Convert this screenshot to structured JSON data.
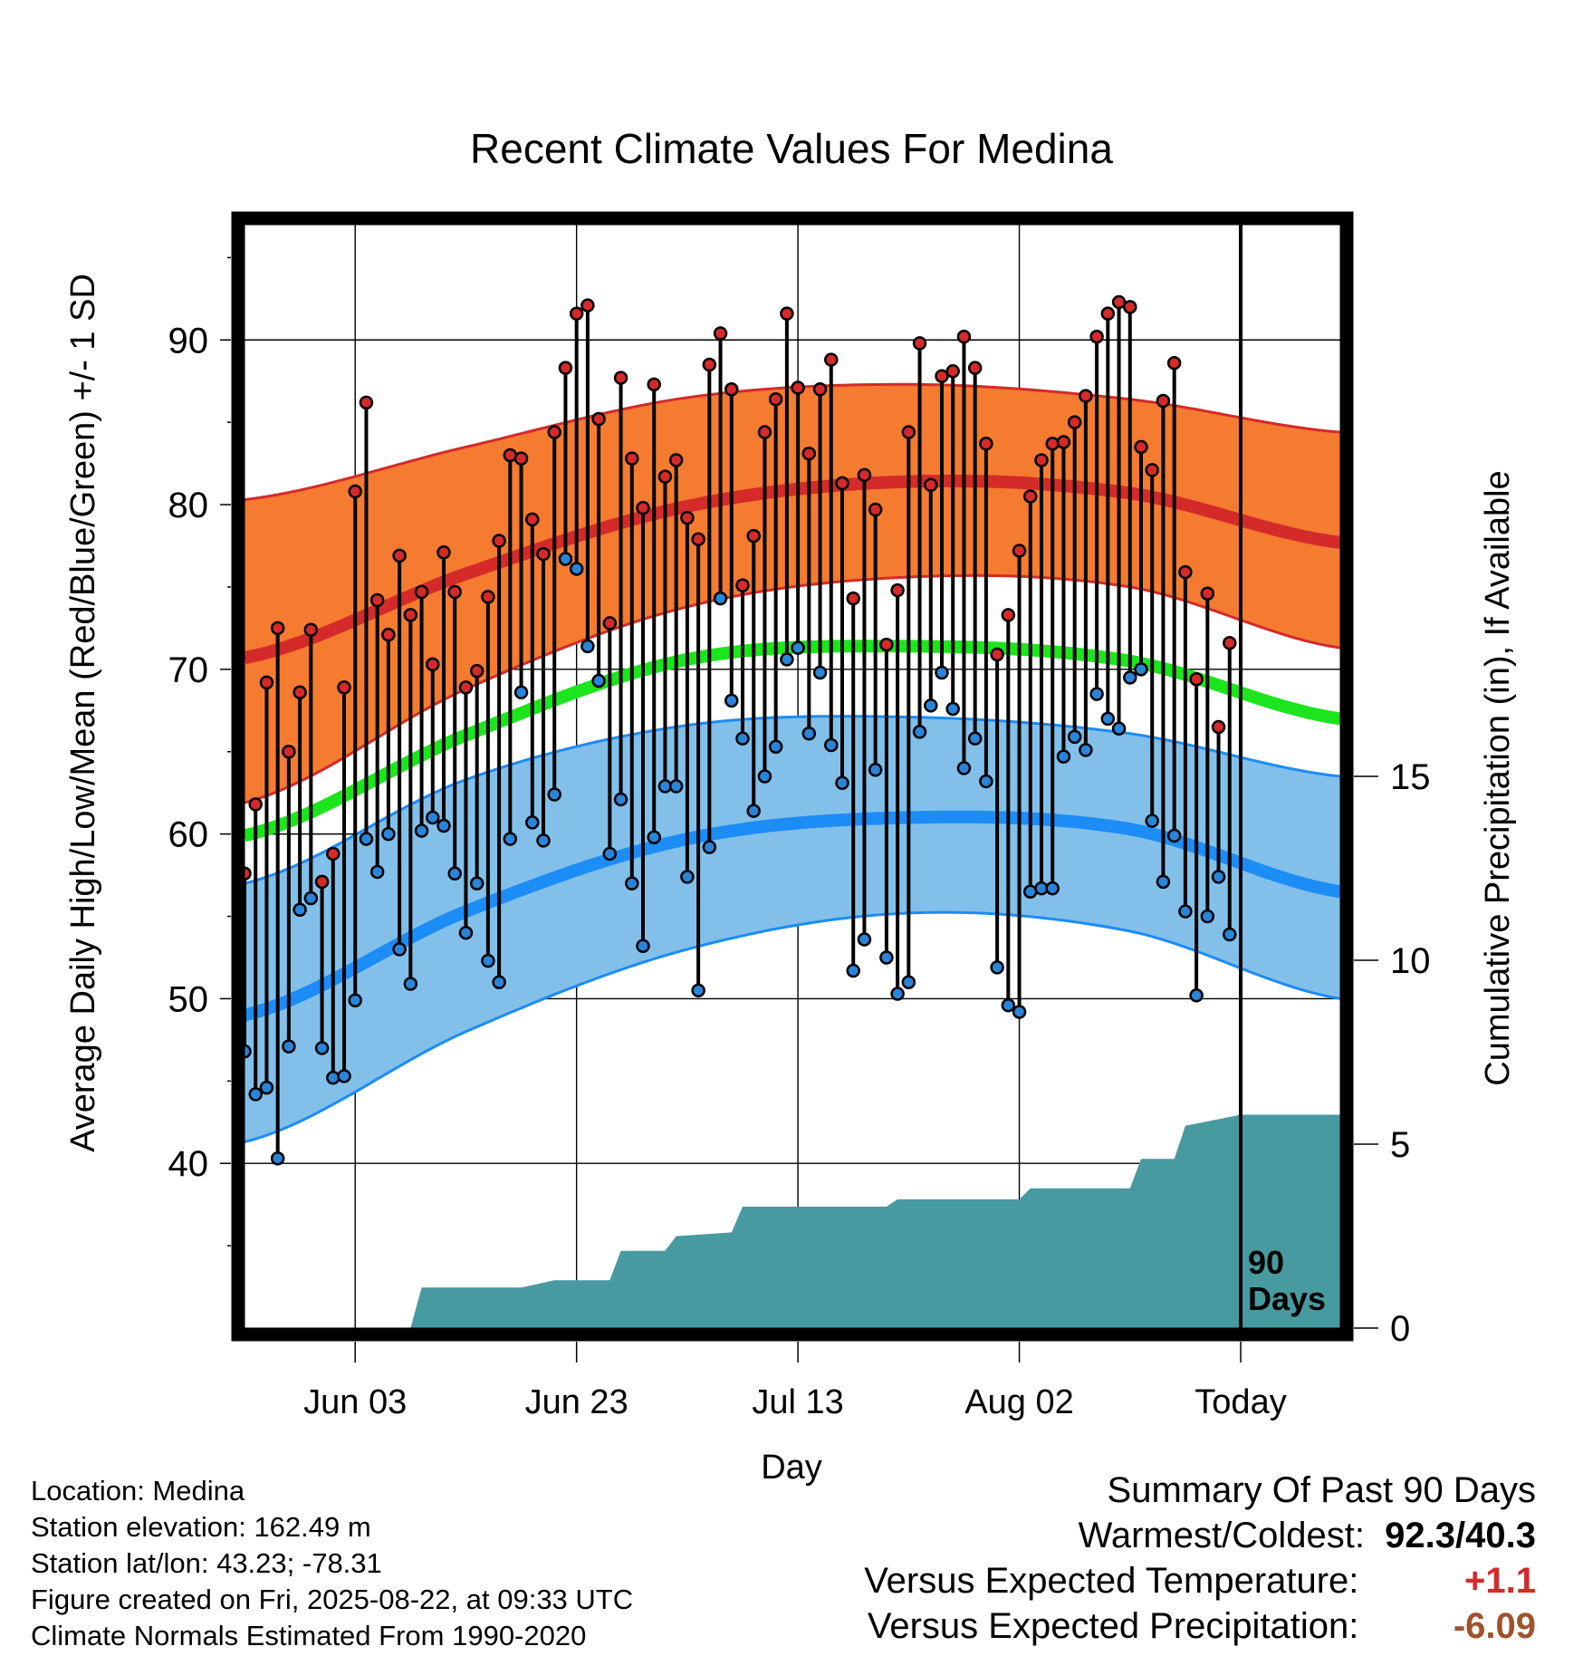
{
  "chart_data": {
    "type": "line",
    "title": "Recent Climate Values For Medina",
    "xlabel": "Day",
    "ylabel": "Average Daily High/Low/Mean (Red/Blue/Green) +/- 1 SD",
    "ylabel_right": "Cumulative Precipitation (in), If Available",
    "ylim": [
      30,
      97
    ],
    "ylim_right": [
      0,
      30
    ],
    "x_range_days_before_today": [
      -90,
      9
    ],
    "x_ticks": [
      {
        "day": -80,
        "label": "Jun 03"
      },
      {
        "day": -60,
        "label": "Jun 23"
      },
      {
        "day": -40,
        "label": "Jul 13"
      },
      {
        "day": -20,
        "label": "Aug 02"
      },
      {
        "day": 0,
        "label": "Today"
      }
    ],
    "y_ticks": [
      40,
      50,
      60,
      70,
      80,
      90
    ],
    "y_ticks_right": [
      0,
      5,
      10,
      15
    ],
    "period_label": "90 Days",
    "colors": {
      "high_band": "#f47b30",
      "high_line": "#d42a2a",
      "low_band": "#82c0ea",
      "low_line": "#1c8cf6",
      "mean_line": "#1de51d",
      "precip": "#479aa0",
      "high_dot": "#d42a2a",
      "low_dot": "#2a84d8",
      "frame": "#000000"
    },
    "normals": {
      "days": [
        -90,
        -70,
        -50,
        -30,
        -10,
        9
      ],
      "high_mean": [
        70.7,
        75.8,
        79.9,
        81.4,
        80.7,
        77.7
      ],
      "high_upper": [
        80.3,
        83.5,
        86.5,
        87.3,
        86.4,
        84.4
      ],
      "high_lower": [
        61.9,
        68.8,
        73.8,
        75.6,
        75.0,
        71.3
      ],
      "mean": [
        59.9,
        66.0,
        70.6,
        71.4,
        70.5,
        67.0
      ],
      "low_mean": [
        49.0,
        55.3,
        59.7,
        61.0,
        60.3,
        56.5
      ],
      "low_upper": [
        57.0,
        63.3,
        66.6,
        67.1,
        66.1,
        63.5
      ],
      "low_lower": [
        41.3,
        48.0,
        53.0,
        55.2,
        54.1,
        50.0
      ]
    },
    "daily_high": [
      57.6,
      61.8,
      69.2,
      72.5,
      65.0,
      68.6,
      72.4,
      57.1,
      58.8,
      68.9,
      80.8,
      86.2,
      74.2,
      72.1,
      76.9,
      73.3,
      74.7,
      70.3,
      77.1,
      74.7,
      68.9,
      69.9,
      74.4,
      77.8,
      83.0,
      82.8,
      79.1,
      77.0,
      84.4,
      88.3,
      91.6,
      92.1,
      85.2,
      72.8,
      87.7,
      82.8,
      79.8,
      87.3,
      81.7,
      82.7,
      79.2,
      77.9,
      88.5,
      90.4,
      87.0,
      75.1,
      78.1,
      84.4,
      86.4,
      91.6,
      87.1,
      83.1,
      87.0,
      88.8,
      81.3,
      74.3,
      81.8,
      79.7,
      71.5,
      74.8,
      84.4,
      89.8,
      81.2,
      87.8,
      88.1,
      90.2,
      88.3,
      83.7,
      70.9,
      73.3,
      77.2,
      80.5,
      82.7,
      83.7,
      83.8,
      85.0,
      86.6,
      90.2,
      91.6,
      92.3,
      92.0,
      83.5,
      82.1,
      86.3,
      88.6,
      75.9,
      69.4,
      74.6,
      66.5,
      71.6
    ],
    "daily_low": [
      46.8,
      44.2,
      44.6,
      40.3,
      47.1,
      55.4,
      56.1,
      47.0,
      45.2,
      45.3,
      49.9,
      59.7,
      57.7,
      60.0,
      53.0,
      50.9,
      60.2,
      61.0,
      60.5,
      57.6,
      54.0,
      57.0,
      52.3,
      51.0,
      59.7,
      68.6,
      60.7,
      59.6,
      62.4,
      76.7,
      76.1,
      71.4,
      69.3,
      58.8,
      62.1,
      57.0,
      53.2,
      59.8,
      62.9,
      62.9,
      57.4,
      50.5,
      59.2,
      74.3,
      68.1,
      65.8,
      61.4,
      63.5,
      65.3,
      70.6,
      71.3,
      66.1,
      69.8,
      65.4,
      63.1,
      51.7,
      53.6,
      63.9,
      52.5,
      50.3,
      51.0,
      66.2,
      67.8,
      69.8,
      67.6,
      64.0,
      65.8,
      63.2,
      51.9,
      49.6,
      49.2,
      56.5,
      56.7,
      56.7,
      64.7,
      65.9,
      65.1,
      68.5,
      67.0,
      66.4,
      69.5,
      70.0,
      60.8,
      57.1,
      59.9,
      55.3,
      50.2,
      55.0,
      57.4,
      53.9
    ],
    "cumulative_precip": {
      "days": [
        -90,
        -75,
        -74,
        -65,
        -62,
        -57,
        -56,
        -52,
        -51,
        -46,
        -45,
        -32,
        -31,
        -20,
        -19,
        -10,
        -9,
        -6,
        -5,
        0,
        9
      ],
      "values": [
        0,
        0,
        1.1,
        1.1,
        1.3,
        1.3,
        2.1,
        2.1,
        2.5,
        2.6,
        3.3,
        3.3,
        3.5,
        3.5,
        3.8,
        3.8,
        4.6,
        4.6,
        5.5,
        5.8,
        5.8
      ]
    }
  },
  "meta": {
    "location": "Location: Medina",
    "elevation": "Station elevation: 162.49 m",
    "latlon": "Station lat/lon: 43.23; -78.31",
    "created": "Figure created on Fri, 2025-08-22, at 09:33 UTC",
    "normals": "Climate Normals Estimated From 1990-2020"
  },
  "summary": {
    "title": "Summary Of Past 90 Days",
    "warmest_coldest_label": "Warmest/Coldest:",
    "warmest_coldest_value": "92.3/40.3",
    "temp_label": "Versus Expected Temperature:",
    "temp_value": "+1.1",
    "temp_color": "#d42a2a",
    "precip_label": "Versus Expected Precipitation:",
    "precip_value": "-6.09",
    "precip_color": "#a0522d"
  }
}
